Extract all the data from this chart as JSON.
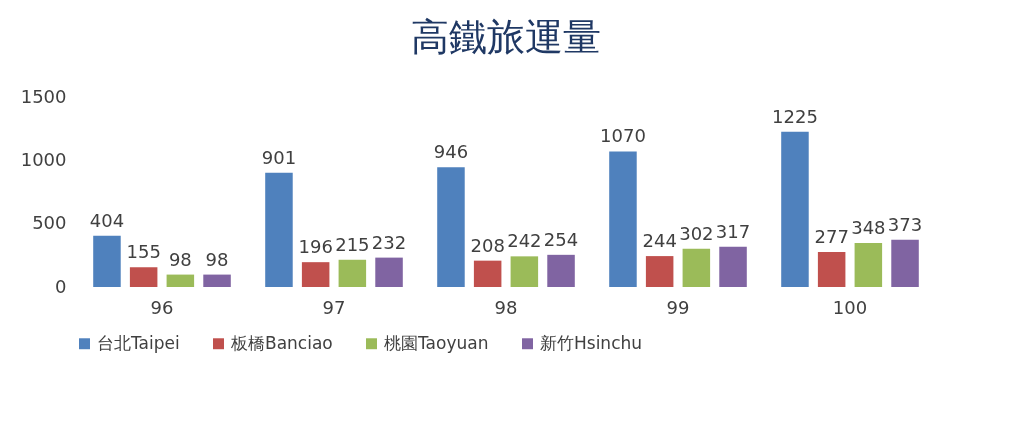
{
  "chart_data": {
    "type": "bar",
    "title": "高鐵旅運量",
    "categories": [
      "96",
      "97",
      "98",
      "99",
      "100"
    ],
    "series": [
      {
        "name": "台北Taipei",
        "color": "#4f81bd",
        "values": [
          404,
          901,
          946,
          1070,
          1225
        ]
      },
      {
        "name": "板橋Banciao",
        "color": "#c0504d",
        "values": [
          155,
          196,
          208,
          244,
          277
        ]
      },
      {
        "name": "桃園Taoyuan",
        "color": "#9bbb59",
        "values": [
          98,
          215,
          242,
          302,
          348
        ]
      },
      {
        "name": "新竹Hsinchu",
        "color": "#8064a2",
        "values": [
          98,
          232,
          254,
          317,
          373
        ]
      }
    ],
    "ylim": [
      0,
      1500
    ],
    "yticks": [
      0,
      500,
      1000,
      1500
    ],
    "grid": false,
    "legend": "bottom",
    "data_labels": true
  }
}
